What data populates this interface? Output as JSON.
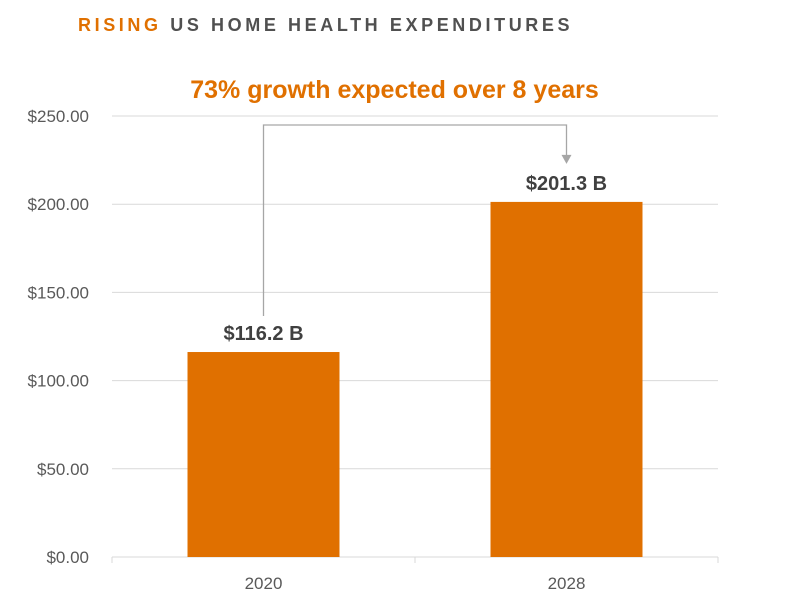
{
  "title": {
    "accent": "RISING",
    "rest": "US HOME HEALTH EXPENDITURES"
  },
  "colors": {
    "accent": "#E07000",
    "title_gray": "#505050",
    "grid": "#D9D9D9",
    "arrow": "#A6A6A6",
    "text": "#404040"
  },
  "chart_data": {
    "type": "bar",
    "subtitle": "73% growth expected over 8 years",
    "categories": [
      "2020",
      "2028"
    ],
    "values": [
      116.2,
      201.3
    ],
    "data_labels": [
      "$116.2 B",
      "$201.3 B"
    ],
    "y_ticks": [
      "$0.00",
      "$50.00",
      "$100.00",
      "$150.00",
      "$200.00",
      "$250.00"
    ],
    "ylim": [
      0,
      250
    ],
    "grid": true,
    "annotation": "growth arrow from 2020 bar to 2028 bar"
  }
}
